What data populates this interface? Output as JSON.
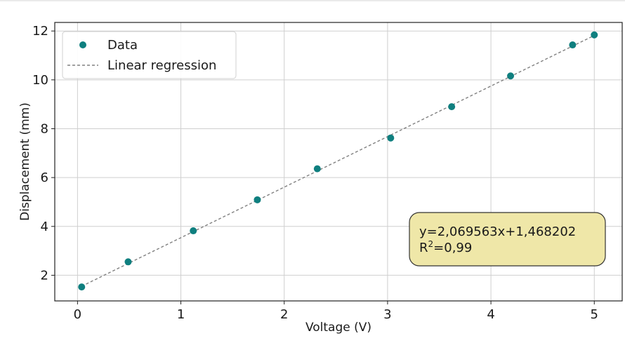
{
  "chart_data": {
    "type": "scatter",
    "title": "",
    "xlabel": "Voltage (V)",
    "ylabel": "Displacement (mm)",
    "xlim": [
      -0.22,
      5.27
    ],
    "ylim": [
      0.95,
      12.35
    ],
    "xticks": [
      0,
      1,
      2,
      3,
      4,
      5
    ],
    "yticks": [
      2,
      4,
      6,
      8,
      10,
      12
    ],
    "grid": true,
    "legend_position": "top-left",
    "series": [
      {
        "name": "Data",
        "kind": "scatter",
        "color": "#0f7f7f",
        "x": [
          0.04,
          0.49,
          1.12,
          1.74,
          2.32,
          3.03,
          3.62,
          4.19,
          4.79,
          5.0
        ],
        "y": [
          1.52,
          2.55,
          3.82,
          5.09,
          6.36,
          7.62,
          8.9,
          10.16,
          11.43,
          11.84
        ]
      },
      {
        "name": "Linear regression",
        "kind": "line",
        "style": "dashed",
        "color": "#808080",
        "x": [
          0.04,
          5.0
        ],
        "y": [
          1.551,
          11.817
        ]
      }
    ],
    "annotation": {
      "line1": "y=2,069563x+1,468202",
      "line2_prefix": "R",
      "line2_sup": "2",
      "line2_suffix": "=0,99",
      "position": "bottom-right",
      "facecolor": "#efe7a8",
      "edgecolor": "#333333"
    }
  }
}
